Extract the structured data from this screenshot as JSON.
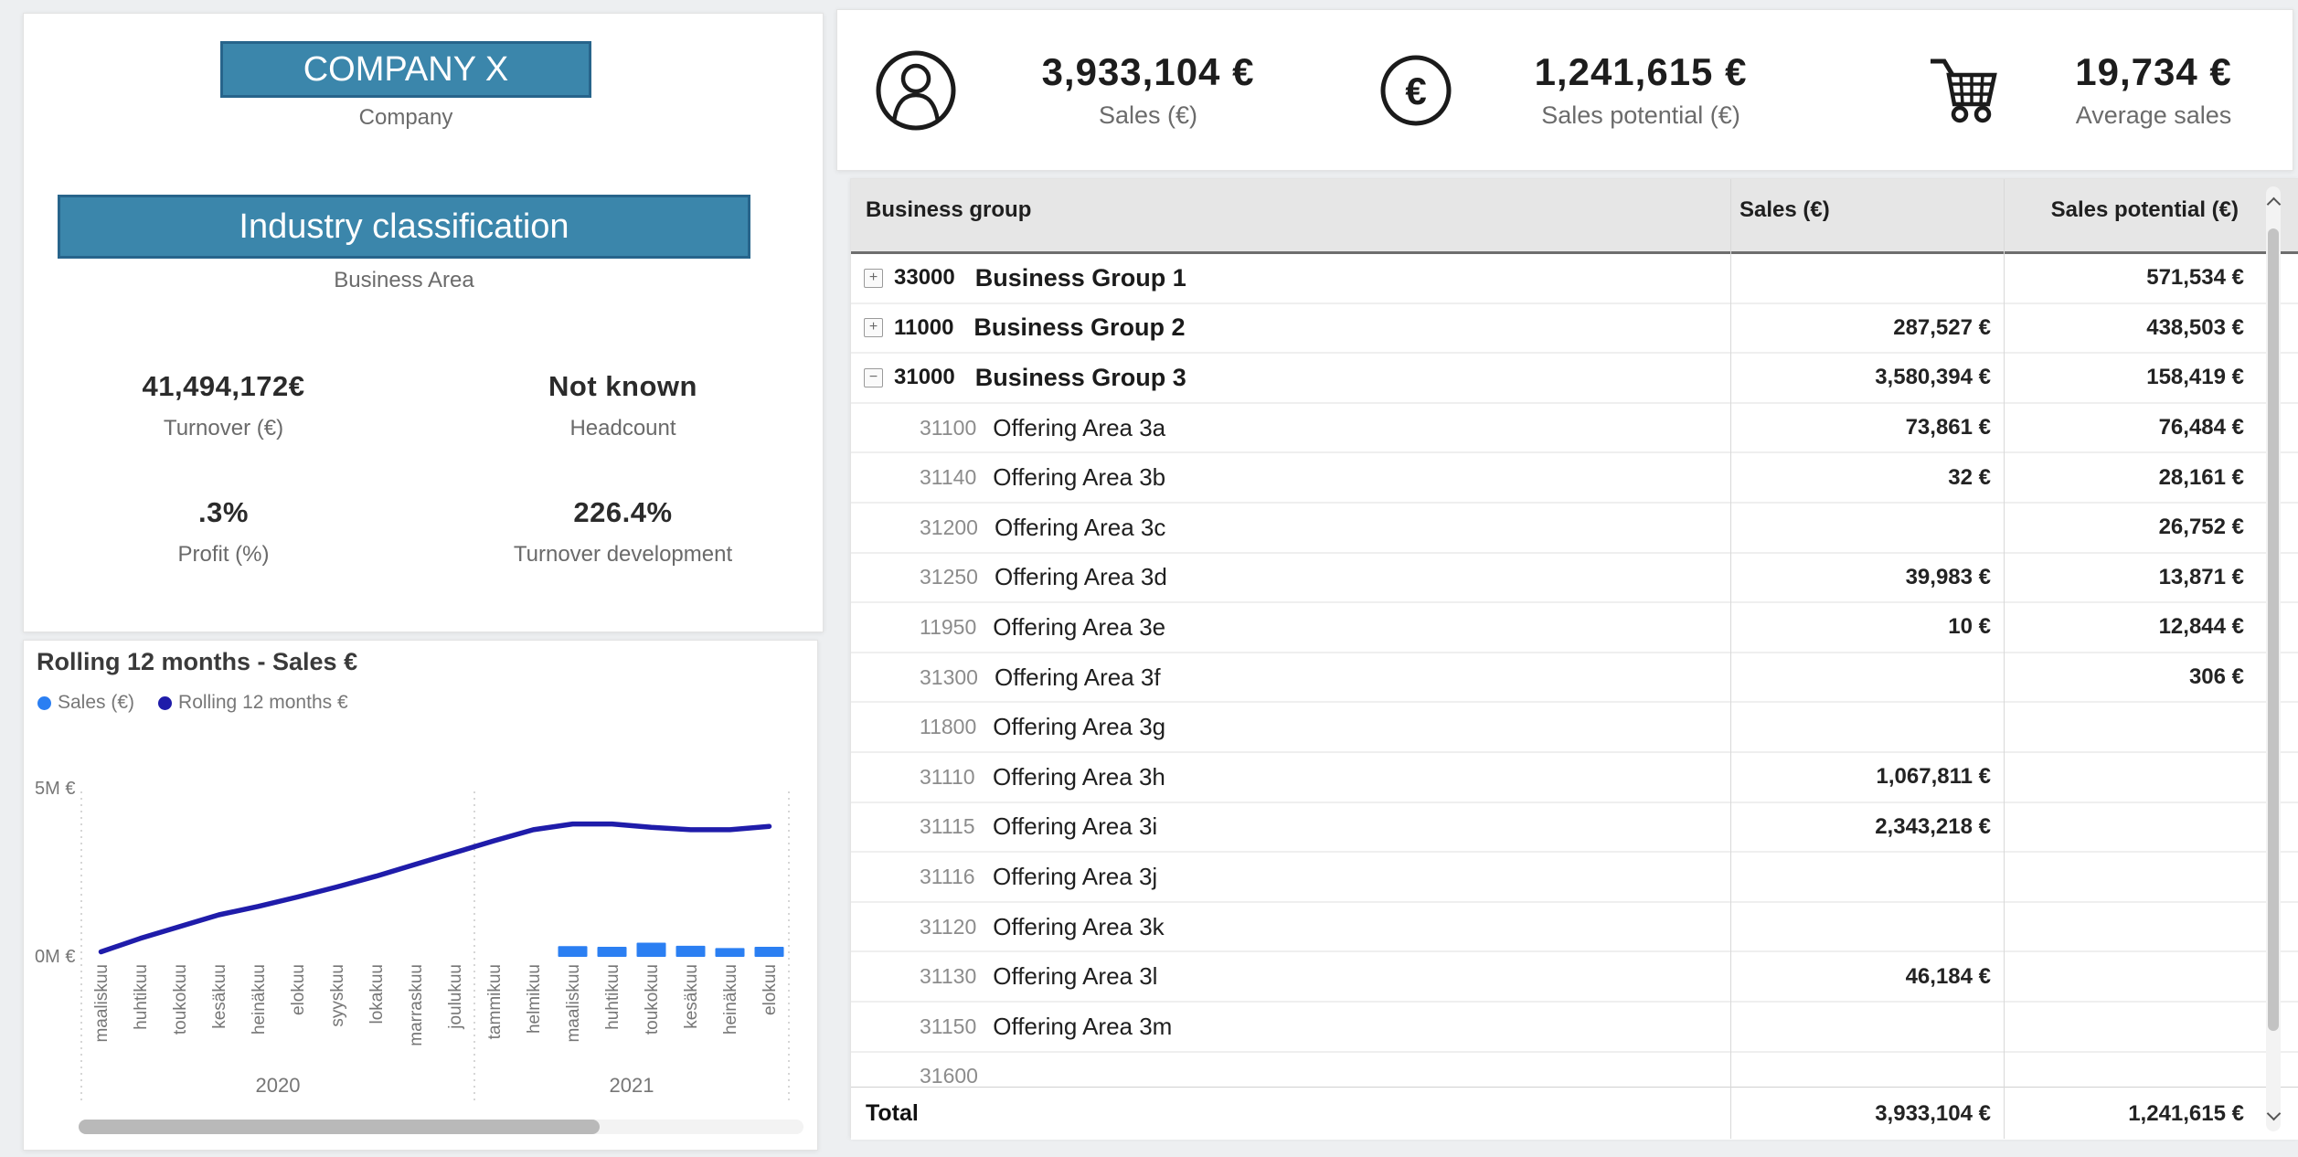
{
  "company_card": {
    "company_name": "COMPANY X",
    "company_label": "Company",
    "industry_name": "Industry classification",
    "industry_label": "Business Area",
    "accent_color": "#3b86ab",
    "kpis": [
      {
        "value": "41,494,172€",
        "label": "Turnover (€)"
      },
      {
        "value": "Not known",
        "label": "Headcount"
      },
      {
        "value": ".3%",
        "label": "Profit (%)"
      },
      {
        "value": "226.4%",
        "label": "Turnover development"
      }
    ]
  },
  "kpi_strip": {
    "items": [
      {
        "icon": "person-icon",
        "value": "3,933,104 €",
        "label": "Sales (€)"
      },
      {
        "icon": "euro-icon",
        "value": "1,241,615 €",
        "label": "Sales potential (€)"
      },
      {
        "icon": "cart-icon",
        "value": "19,734 €",
        "label": "Average sales"
      }
    ]
  },
  "table": {
    "columns": [
      "Business group",
      "Sales (€)",
      "Sales potential (€)"
    ],
    "sort_column": "Sales potential (€)",
    "sort_direction": "descending",
    "rows": [
      {
        "type": "group",
        "expand": "plus",
        "code": "33000",
        "name": "Business Group 1",
        "sales": "",
        "potential": "571,534 €"
      },
      {
        "type": "group",
        "expand": "plus",
        "code": "11000",
        "name": "Business Group 2",
        "sales": "287,527 €",
        "potential": "438,503 €"
      },
      {
        "type": "group",
        "expand": "minus",
        "code": "31000",
        "name": "Business Group 3",
        "sales": "3,580,394 €",
        "potential": "158,419 €"
      },
      {
        "type": "child",
        "code": "31100",
        "name": "Offering Area 3a",
        "sales": "73,861 €",
        "potential": "76,484 €"
      },
      {
        "type": "child",
        "code": "31140",
        "name": "Offering Area 3b",
        "sales": "32 €",
        "potential": "28,161 €"
      },
      {
        "type": "child",
        "code": "31200",
        "name": "Offering Area 3c",
        "sales": "",
        "potential": "26,752 €"
      },
      {
        "type": "child",
        "code": "31250",
        "name": "Offering Area 3d",
        "sales": "39,983 €",
        "potential": "13,871 €"
      },
      {
        "type": "child",
        "code": "11950",
        "name": "Offering Area 3e",
        "sales": "10 €",
        "potential": "12,844 €"
      },
      {
        "type": "child",
        "code": "31300",
        "name": "Offering Area 3f",
        "sales": "",
        "potential": "306 €"
      },
      {
        "type": "child",
        "code": "11800",
        "name": "Offering Area 3g",
        "sales": "",
        "potential": ""
      },
      {
        "type": "child",
        "code": "31110",
        "name": "Offering Area 3h",
        "sales": "1,067,811 €",
        "potential": ""
      },
      {
        "type": "child",
        "code": "31115",
        "name": "Offering Area 3i",
        "sales": "2,343,218 €",
        "potential": ""
      },
      {
        "type": "child",
        "code": "31116",
        "name": "Offering Area 3j",
        "sales": "",
        "potential": ""
      },
      {
        "type": "child",
        "code": "31120",
        "name": "Offering Area 3k",
        "sales": "",
        "potential": ""
      },
      {
        "type": "child",
        "code": "31130",
        "name": "Offering Area 3l",
        "sales": "46,184 €",
        "potential": ""
      },
      {
        "type": "child",
        "code": "31150",
        "name": "Offering Area 3m",
        "sales": "",
        "potential": ""
      },
      {
        "type": "child",
        "code": "31600",
        "name": "",
        "sales": "",
        "potential": ""
      }
    ],
    "total": {
      "label": "Total",
      "sales": "3,933,104 €",
      "potential": "1,241,615 €"
    }
  },
  "chart_data": {
    "type": "line+bar",
    "title": "Rolling 12 months - Sales €",
    "ylim": [
      0,
      5000000
    ],
    "yticks": [
      {
        "value": 0,
        "label": "0M €"
      },
      {
        "value": 5000000,
        "label": "5M €"
      }
    ],
    "categories": [
      "maaliskuu",
      "huhtikuu",
      "toukokuu",
      "kesäkuu",
      "heinäkuu",
      "elokuu",
      "syyskuu",
      "lokakuu",
      "marraskuu",
      "joulukuu",
      "tammikuu",
      "helmikuu",
      "maaliskuu",
      "huhtikuu",
      "toukokuu",
      "kesäkuu",
      "heinäkuu",
      "elokuu"
    ],
    "year_groups": [
      {
        "label": "2020",
        "count": 10
      },
      {
        "label": "2021",
        "count": 8
      }
    ],
    "legend_position": "top-left",
    "series": [
      {
        "name": "Sales (€)",
        "type": "bar",
        "color": "#2b7ff2",
        "values": [
          null,
          null,
          null,
          null,
          null,
          null,
          null,
          null,
          null,
          null,
          null,
          null,
          320000,
          300000,
          420000,
          330000,
          260000,
          300000
        ]
      },
      {
        "name": "Rolling 12 months €",
        "type": "line",
        "color": "#1f1caa",
        "values": [
          150000,
          550000,
          900000,
          1250000,
          1500000,
          1780000,
          2080000,
          2400000,
          2750000,
          3100000,
          3450000,
          3780000,
          3950000,
          3950000,
          3850000,
          3780000,
          3780000,
          3880000
        ]
      }
    ]
  }
}
